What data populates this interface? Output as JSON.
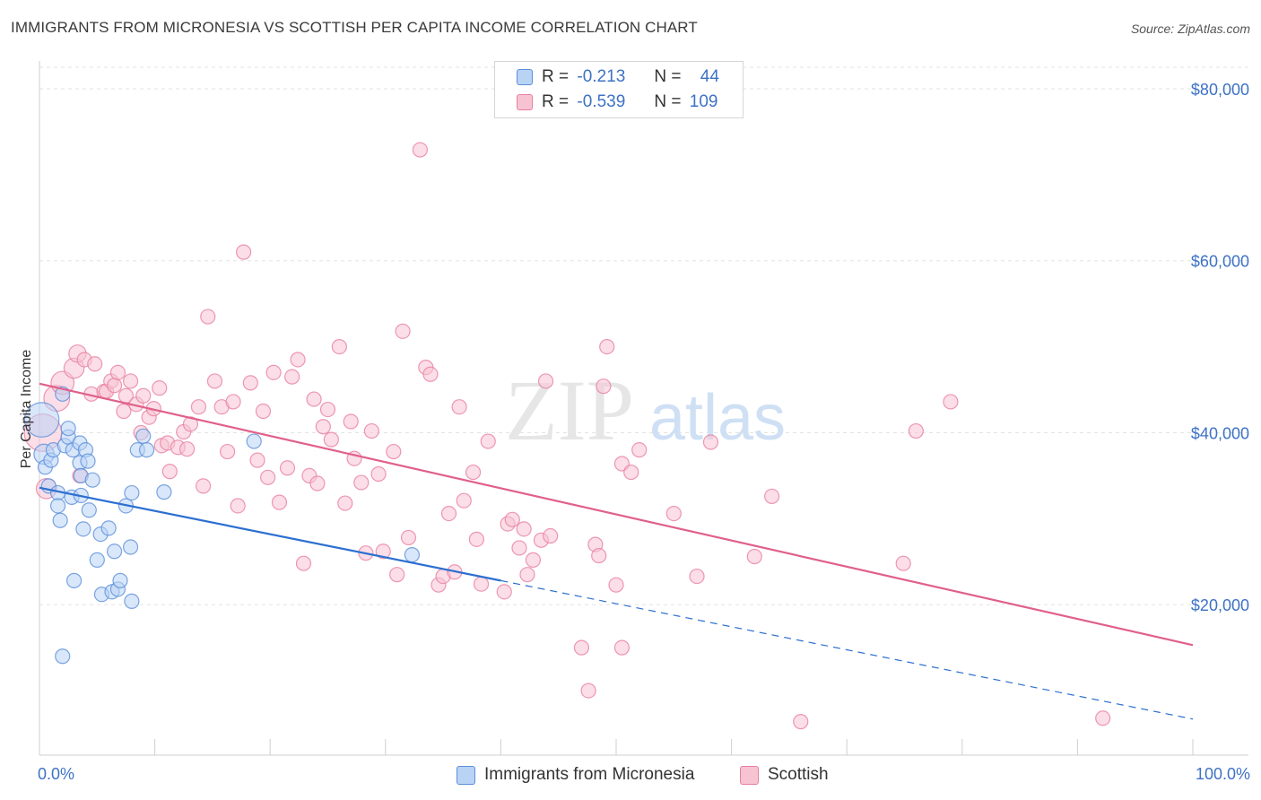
{
  "title": "IMMIGRANTS FROM MICRONESIA VS SCOTTISH PER CAPITA INCOME CORRELATION CHART",
  "source": "Source: ZipAtlas.com",
  "watermark": {
    "zip": "ZIP",
    "atlas": "atlas"
  },
  "colors": {
    "blue_fill": "#b9d3f5",
    "blue_stroke": "#5b8fd8",
    "blue_line": "#2b6fd1",
    "pink_fill": "#f7c3d3",
    "pink_stroke": "#e87fa1",
    "pink_line": "#e0608a",
    "tick": "#3d72c5",
    "grid": "#e3e3e3"
  },
  "legend": {
    "rows": [
      {
        "r_label": "R =",
        "r_value": "-0.213",
        "n_label": "N =",
        "n_value": "44"
      },
      {
        "r_label": "R =",
        "r_value": "-0.539",
        "n_label": "N =",
        "n_value": "109"
      }
    ],
    "series": [
      "Immigrants from Micronesia",
      "Scottish"
    ]
  },
  "chart_data": {
    "type": "scatter",
    "xlabel": "",
    "ylabel": "Per Capita Income",
    "xlim": [
      0,
      100
    ],
    "ylim": [
      2500,
      82500
    ],
    "x_tick_labels": [
      "0.0%",
      "100.0%"
    ],
    "y_ticks": [
      20000,
      40000,
      60000,
      80000
    ],
    "y_tick_labels": [
      "$20,000",
      "$40,000",
      "$60,000",
      "$80,000"
    ],
    "grid": true,
    "legend_position": "top-center",
    "series": [
      {
        "name": "Immigrants from Micronesia",
        "r": -0.213,
        "n": 44,
        "trend": {
          "x0": 0,
          "y0": 33600,
          "x1": 40,
          "y1": 22800,
          "dash_to_x": 100,
          "dash_to_y": 6700
        },
        "points": [
          [
            0.2,
            41500,
            24
          ],
          [
            0.4,
            37500,
            14
          ],
          [
            0.5,
            36000,
            10
          ],
          [
            0.8,
            33800,
            10
          ],
          [
            1.0,
            36800,
            10
          ],
          [
            1.2,
            38000,
            10
          ],
          [
            1.6,
            33000,
            10
          ],
          [
            1.6,
            31500,
            10
          ],
          [
            1.8,
            29800,
            10
          ],
          [
            2.0,
            44500,
            10
          ],
          [
            2.0,
            14000,
            10
          ],
          [
            2.2,
            38500,
            10
          ],
          [
            2.5,
            39500,
            10
          ],
          [
            2.5,
            40500,
            10
          ],
          [
            2.8,
            32500,
            10
          ],
          [
            2.9,
            38000,
            10
          ],
          [
            3.0,
            22800,
            10
          ],
          [
            3.5,
            36500,
            10
          ],
          [
            3.5,
            38800,
            10
          ],
          [
            3.6,
            32700,
            10
          ],
          [
            3.6,
            35000,
            10
          ],
          [
            3.8,
            28800,
            10
          ],
          [
            4.0,
            38000,
            10
          ],
          [
            4.2,
            36700,
            10
          ],
          [
            4.3,
            31000,
            10
          ],
          [
            4.6,
            34500,
            10
          ],
          [
            5.0,
            25200,
            10
          ],
          [
            5.3,
            28200,
            10
          ],
          [
            5.4,
            21200,
            10
          ],
          [
            6.0,
            28900,
            10
          ],
          [
            6.3,
            21500,
            10
          ],
          [
            6.5,
            26200,
            10
          ],
          [
            6.8,
            21800,
            10
          ],
          [
            7.0,
            22800,
            10
          ],
          [
            7.5,
            31500,
            10
          ],
          [
            7.9,
            26700,
            10
          ],
          [
            8.0,
            33000,
            10
          ],
          [
            8.0,
            20400,
            10
          ],
          [
            8.5,
            38000,
            10
          ],
          [
            9.0,
            39600,
            10
          ],
          [
            9.3,
            38000,
            10
          ],
          [
            10.8,
            33100,
            10
          ],
          [
            18.6,
            39000,
            10
          ],
          [
            32.3,
            25800,
            10
          ]
        ]
      },
      {
        "name": "Scottish",
        "r": -0.539,
        "n": 109,
        "trend": {
          "x0": 0,
          "y0": 45700,
          "x1": 100,
          "y1": 15300
        },
        "points": [
          [
            0.3,
            40000,
            26
          ],
          [
            0.6,
            33500,
            14
          ],
          [
            1.5,
            44000,
            18
          ],
          [
            2.0,
            45800,
            16
          ],
          [
            3.0,
            47500,
            14
          ],
          [
            3.3,
            49200,
            12
          ],
          [
            3.5,
            35000,
            10
          ],
          [
            3.9,
            48500,
            10
          ],
          [
            4.5,
            44500,
            10
          ],
          [
            4.8,
            48000,
            10
          ],
          [
            5.6,
            44800,
            10
          ],
          [
            5.8,
            44800,
            10
          ],
          [
            6.2,
            46000,
            10
          ],
          [
            6.5,
            45500,
            10
          ],
          [
            6.8,
            47000,
            10
          ],
          [
            7.3,
            42500,
            10
          ],
          [
            7.5,
            44300,
            10
          ],
          [
            7.9,
            46000,
            10
          ],
          [
            8.4,
            43300,
            10
          ],
          [
            8.8,
            40000,
            10
          ],
          [
            9.0,
            44300,
            10
          ],
          [
            9.5,
            41800,
            10
          ],
          [
            9.9,
            42800,
            10
          ],
          [
            10.4,
            45200,
            10
          ],
          [
            10.6,
            38500,
            10
          ],
          [
            11.1,
            38800,
            10
          ],
          [
            11.3,
            35500,
            10
          ],
          [
            12.0,
            38300,
            10
          ],
          [
            12.5,
            40100,
            10
          ],
          [
            12.8,
            38100,
            10
          ],
          [
            13.1,
            41000,
            10
          ],
          [
            13.8,
            43000,
            10
          ],
          [
            14.2,
            33800,
            10
          ],
          [
            14.6,
            53500,
            10
          ],
          [
            15.2,
            46000,
            10
          ],
          [
            15.8,
            43000,
            10
          ],
          [
            16.3,
            37800,
            10
          ],
          [
            16.8,
            43600,
            10
          ],
          [
            17.2,
            31500,
            10
          ],
          [
            17.7,
            61000,
            10
          ],
          [
            18.3,
            45800,
            10
          ],
          [
            18.9,
            36800,
            10
          ],
          [
            19.4,
            42500,
            10
          ],
          [
            19.8,
            34800,
            10
          ],
          [
            20.3,
            47000,
            10
          ],
          [
            20.8,
            31900,
            10
          ],
          [
            21.5,
            35900,
            10
          ],
          [
            21.9,
            46500,
            10
          ],
          [
            22.4,
            48500,
            10
          ],
          [
            22.9,
            24800,
            10
          ],
          [
            23.4,
            35000,
            10
          ],
          [
            23.8,
            43900,
            10
          ],
          [
            24.1,
            34100,
            10
          ],
          [
            24.6,
            40700,
            10
          ],
          [
            25.0,
            42700,
            10
          ],
          [
            25.3,
            39200,
            10
          ],
          [
            26.0,
            50000,
            10
          ],
          [
            26.5,
            31800,
            10
          ],
          [
            27.0,
            41300,
            10
          ],
          [
            27.3,
            37000,
            10
          ],
          [
            27.9,
            34200,
            10
          ],
          [
            28.3,
            26000,
            10
          ],
          [
            28.8,
            40200,
            10
          ],
          [
            29.4,
            35200,
            10
          ],
          [
            29.8,
            26200,
            10
          ],
          [
            30.7,
            37800,
            10
          ],
          [
            31.0,
            23500,
            10
          ],
          [
            31.5,
            51800,
            10
          ],
          [
            32.0,
            27800,
            10
          ],
          [
            33.0,
            72900,
            10
          ],
          [
            33.5,
            47600,
            10
          ],
          [
            33.9,
            46800,
            10
          ],
          [
            34.6,
            22300,
            10
          ],
          [
            35.0,
            23300,
            10
          ],
          [
            35.5,
            30600,
            10
          ],
          [
            36.0,
            23800,
            10
          ],
          [
            36.4,
            43000,
            10
          ],
          [
            36.8,
            32100,
            10
          ],
          [
            37.6,
            35400,
            10
          ],
          [
            37.9,
            27600,
            10
          ],
          [
            38.3,
            22400,
            10
          ],
          [
            38.9,
            39000,
            10
          ],
          [
            40.3,
            21500,
            10
          ],
          [
            40.6,
            29400,
            10
          ],
          [
            41.0,
            29900,
            10
          ],
          [
            41.6,
            26600,
            10
          ],
          [
            42.0,
            28800,
            10
          ],
          [
            42.3,
            23500,
            10
          ],
          [
            42.8,
            25200,
            10
          ],
          [
            43.5,
            27500,
            10
          ],
          [
            43.9,
            46000,
            10
          ],
          [
            44.3,
            28000,
            10
          ],
          [
            47.0,
            15000,
            10
          ],
          [
            47.6,
            10000,
            10
          ],
          [
            48.2,
            27000,
            10
          ],
          [
            48.5,
            25700,
            10
          ],
          [
            48.9,
            45400,
            10
          ],
          [
            49.2,
            50000,
            10
          ],
          [
            50.0,
            22300,
            10
          ],
          [
            50.5,
            36400,
            10
          ],
          [
            51.3,
            35400,
            10
          ],
          [
            52.0,
            38000,
            10
          ],
          [
            55.0,
            30600,
            10
          ],
          [
            57.0,
            23300,
            10
          ],
          [
            58.2,
            38900,
            10
          ],
          [
            62.0,
            25600,
            10
          ],
          [
            63.5,
            32600,
            10
          ],
          [
            66.0,
            6400,
            10
          ],
          [
            74.9,
            24800,
            10
          ],
          [
            76.0,
            40200,
            10
          ],
          [
            79.0,
            43600,
            10
          ],
          [
            92.2,
            6800,
            10
          ],
          [
            50.5,
            15000,
            10
          ]
        ]
      }
    ]
  }
}
